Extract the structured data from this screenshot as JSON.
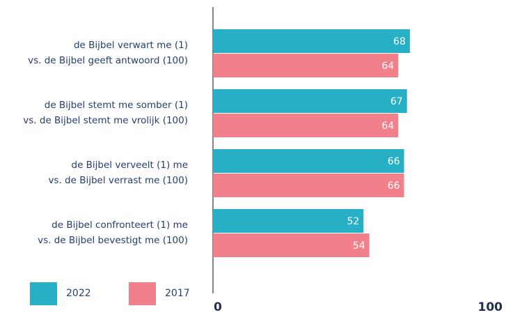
{
  "chart_data": {
    "type": "bar",
    "orientation": "horizontal",
    "categories": [
      [
        "de Bijbel verwart me (1)",
        "vs. de Bijbel geeft antwoord (100)"
      ],
      [
        "de Bijbel stemt me somber (1)",
        "vs. de Bijbel stemt me vrolijk (100)"
      ],
      [
        "de Bijbel verveelt (1) me",
        "vs. de Bijbel verrast me (100)"
      ],
      [
        "de Bijbel confronteert (1) me",
        "vs. de Bijbel bevestigt me (100)"
      ]
    ],
    "series": [
      {
        "name": "2022",
        "color": "#27afc5",
        "values": [
          68,
          67,
          66,
          52
        ]
      },
      {
        "name": "2017",
        "color": "#f2808a",
        "values": [
          64,
          64,
          66,
          54
        ]
      }
    ],
    "xlim": [
      0,
      100
    ],
    "xticks": [
      0,
      100
    ],
    "grid": false,
    "legend": "bottom-left"
  }
}
